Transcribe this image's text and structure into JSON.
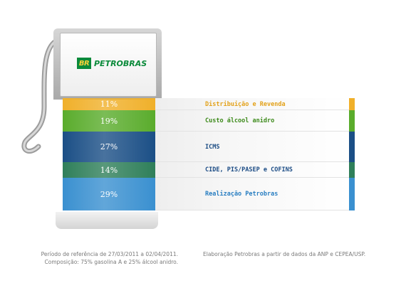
{
  "brand": {
    "logo_mark": "BR",
    "logo_text": "PETROBRAS"
  },
  "chart_data": {
    "type": "bar",
    "stacked": true,
    "unit": "%",
    "categories": [
      "Distribuição e Revenda",
      "Custo álcool anidro",
      "ICMS",
      "CIDE, PIS/PASEP e COFINS",
      "Realização Petrobras"
    ],
    "values": [
      11,
      19,
      27,
      14,
      29
    ],
    "value_labels": [
      "11%",
      "19%",
      "27%",
      "14%",
      "29%"
    ],
    "colors": [
      "#f0b02a",
      "#5aac2c",
      "#1b4f86",
      "#2f7f5a",
      "#3a90d0"
    ],
    "label_colors": [
      "#e3a21b",
      "#3c8a1a",
      "#1c4d84",
      "#1d4d86",
      "#2a7fc2"
    ]
  },
  "footer": {
    "left_line1": "Período de referência de 27/03/2011 a 02/04/2011.",
    "left_line2": "Composição: 75% gasolina A e 25% álcool anidro.",
    "right_line1": "Elaboração Petrobras a partir de dados da ANP e CEPEA/USP."
  }
}
